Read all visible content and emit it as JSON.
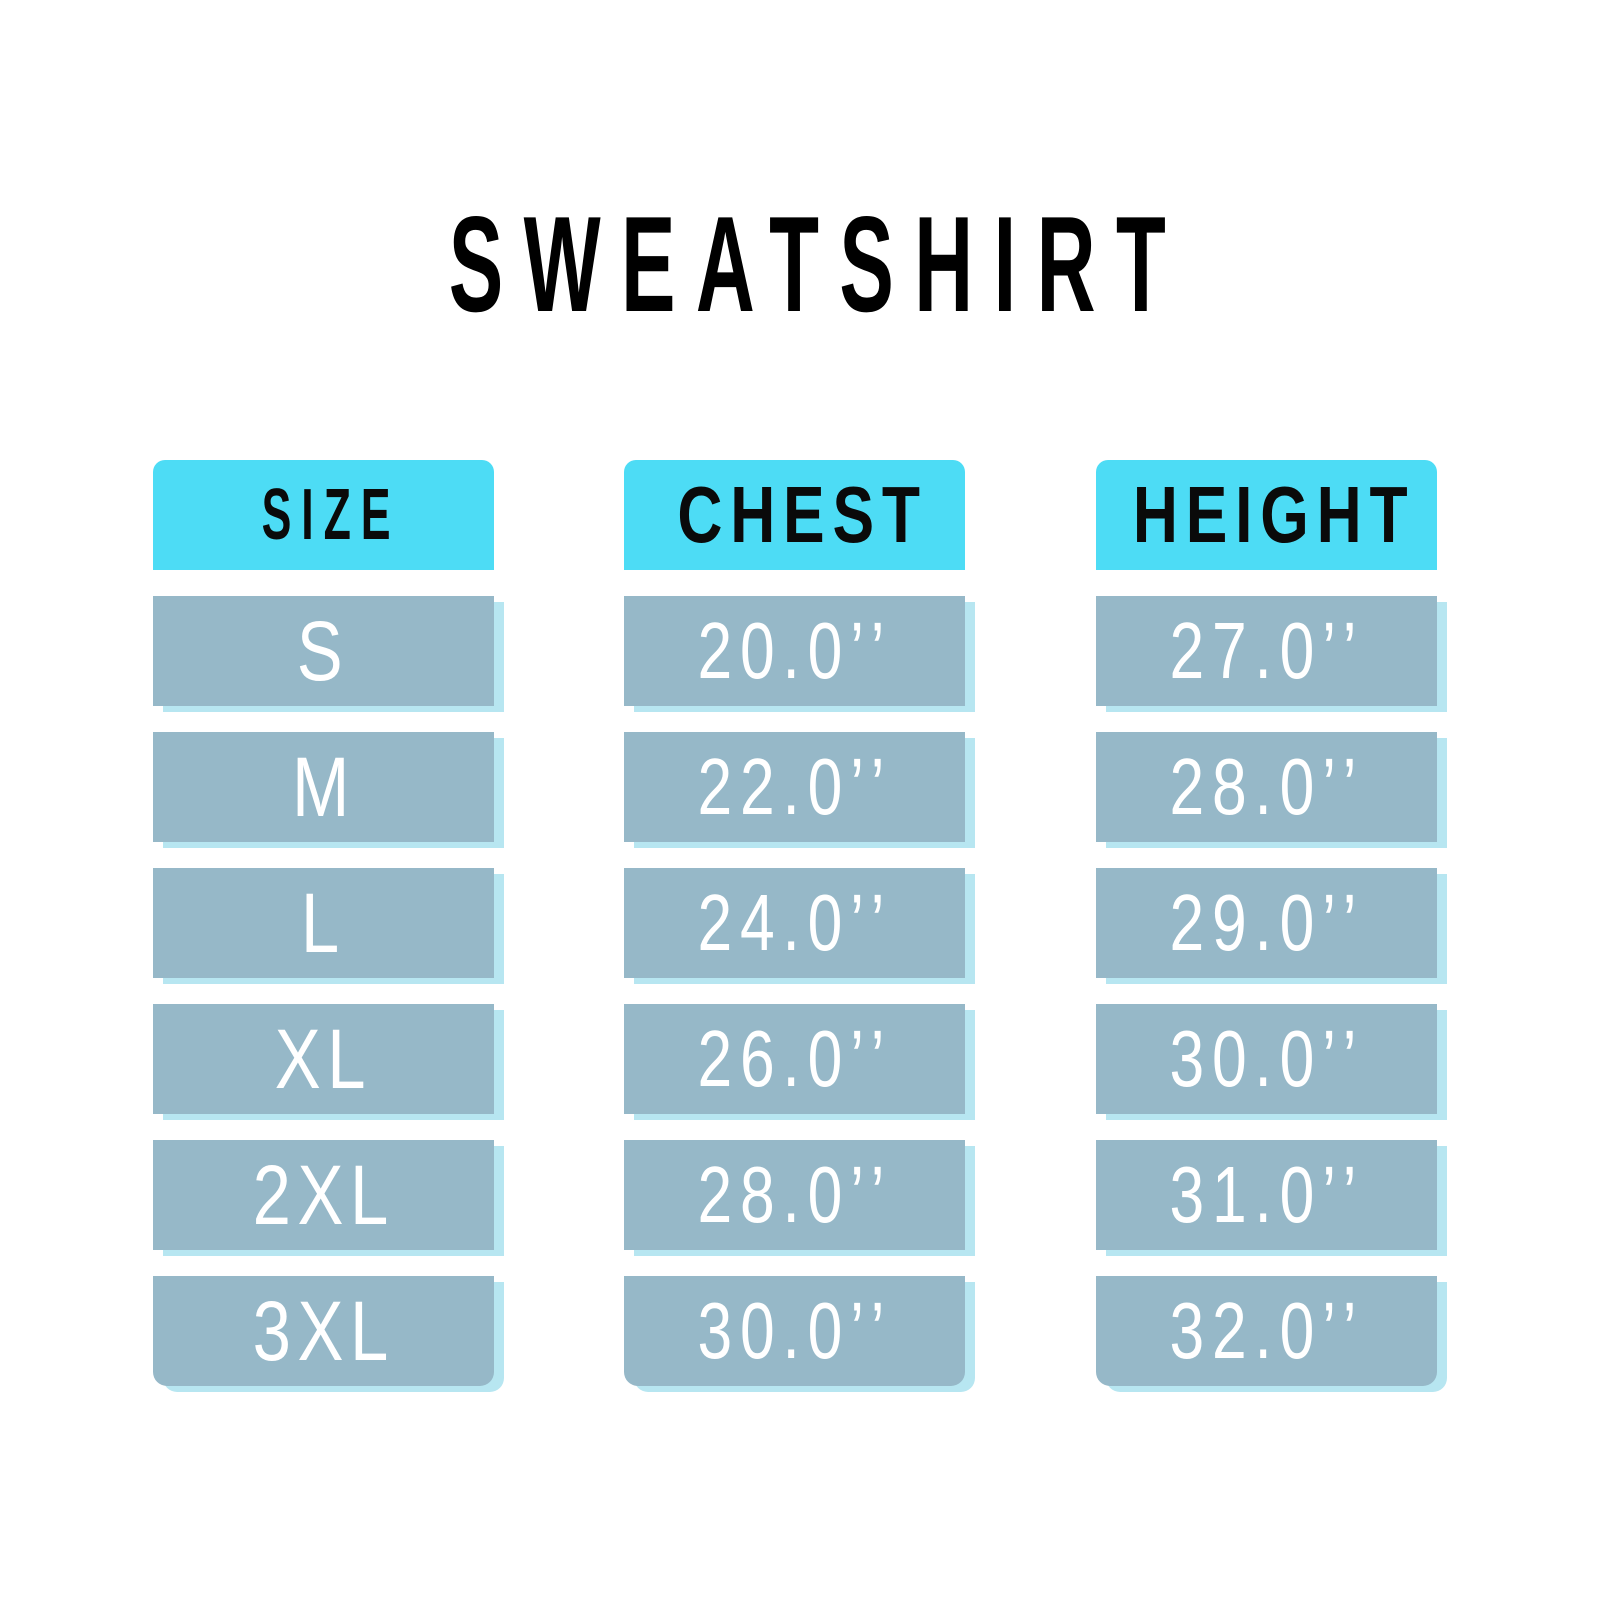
{
  "title": "SWEATSHIRT",
  "colors": {
    "header": "#4ddcf5",
    "cell": "#96b8c8",
    "cell_shadow": "#b7e6f1",
    "text_cell": "#ffffff",
    "text_header": "#0a0a0a"
  },
  "columns": [
    {
      "header": "SIZE",
      "values": [
        "S",
        "M",
        "L",
        "XL",
        "2XL",
        "3XL"
      ]
    },
    {
      "header": "CHEST",
      "values": [
        "20.0’’",
        "22.0’’",
        "24.0’’",
        "26.0’’",
        "28.0’’",
        "30.0’’"
      ]
    },
    {
      "header": "HEIGHT",
      "values": [
        "27.0’’",
        "28.0’’",
        "29.0’’",
        "30.0’’",
        "31.0’’",
        "32.0’’"
      ]
    }
  ]
}
